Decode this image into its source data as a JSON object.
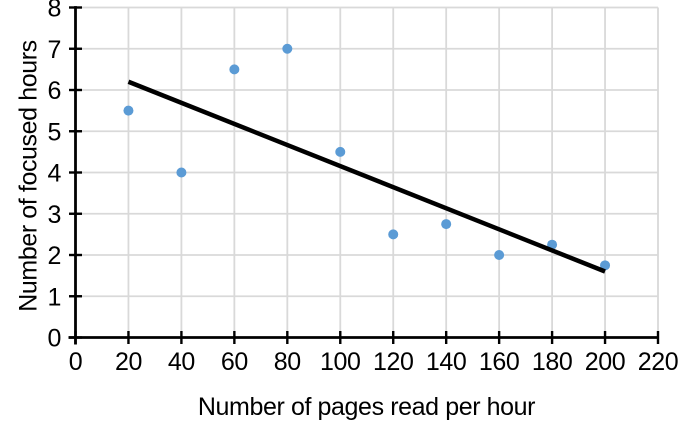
{
  "chart_data": {
    "type": "scatter",
    "title": "",
    "xlabel": "Number of pages read per hour",
    "ylabel": "Number of focused hours",
    "xlim": [
      0,
      220
    ],
    "ylim": [
      0,
      8
    ],
    "x_ticks": [
      0,
      20,
      40,
      60,
      80,
      100,
      120,
      140,
      160,
      180,
      200,
      220
    ],
    "y_ticks": [
      0,
      1,
      2,
      3,
      4,
      5,
      6,
      7,
      8
    ],
    "grid": true,
    "legend_position": "none",
    "series": [
      {
        "name": "scatter-points",
        "type": "scatter",
        "color": "#5B9BD5",
        "points": [
          {
            "x": 20,
            "y": 5.5
          },
          {
            "x": 40,
            "y": 4
          },
          {
            "x": 60,
            "y": 6.5
          },
          {
            "x": 80,
            "y": 7
          },
          {
            "x": 100,
            "y": 4.5
          },
          {
            "x": 120,
            "y": 2.5
          },
          {
            "x": 140,
            "y": 2.75
          },
          {
            "x": 160,
            "y": 2
          },
          {
            "x": 180,
            "y": 2.25
          },
          {
            "x": 200,
            "y": 1.75
          }
        ]
      },
      {
        "name": "trendline",
        "type": "line",
        "color": "#000000",
        "points": [
          {
            "x": 20,
            "y": 6.2
          },
          {
            "x": 200,
            "y": 1.6
          }
        ]
      }
    ],
    "colors": {
      "point": "#5B9BD5",
      "trendline": "#000000",
      "gridline": "#D9D9D9",
      "axis": "#000000",
      "text": "#000000",
      "background": "#FFFFFF"
    }
  }
}
